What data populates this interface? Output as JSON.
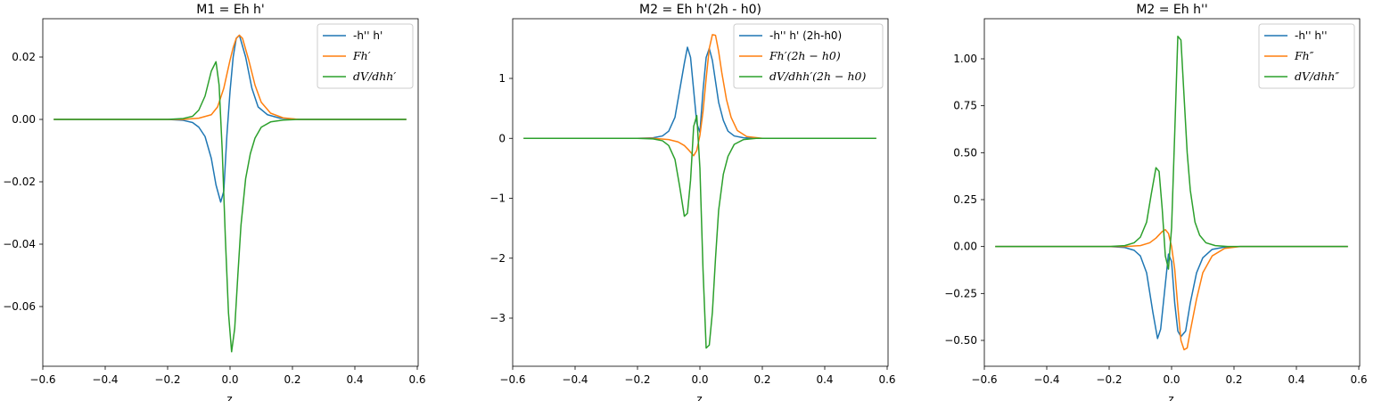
{
  "chart_data": [
    {
      "type": "line",
      "title": "M1 = Eh h'",
      "xlabel": "z",
      "ylabel": "",
      "xlim": [
        -0.6,
        0.6
      ],
      "ylim": [
        -0.078,
        0.032
      ],
      "xticks": [
        -0.6,
        -0.4,
        -0.2,
        0.0,
        0.2,
        0.4,
        0.6
      ],
      "xtick_labels": [
        "−0.6",
        "−0.4",
        "−0.2",
        "0.0",
        "0.2",
        "0.4",
        "0.6"
      ],
      "yticks": [
        0.02,
        0.0,
        -0.02,
        -0.04,
        -0.06
      ],
      "ytick_labels": [
        "0.02",
        "0.00",
        "−0.02",
        "−0.04",
        "−0.06"
      ],
      "legend_position": "top-right",
      "series": [
        {
          "name": "-h'' h'",
          "italic": false,
          "color": "#1f77b4",
          "x": [
            -0.565,
            -0.2,
            -0.15,
            -0.12,
            -0.1,
            -0.08,
            -0.06,
            -0.045,
            -0.03,
            -0.02,
            -0.01,
            0.0,
            0.01,
            0.02,
            0.03,
            0.05,
            0.07,
            0.09,
            0.12,
            0.16,
            0.22,
            0.565
          ],
          "y": [
            0,
            0,
            -0.0003,
            -0.001,
            -0.0025,
            -0.0055,
            -0.0125,
            -0.021,
            -0.0265,
            -0.023,
            -0.005,
            0.009,
            0.02,
            0.026,
            0.027,
            0.02,
            0.01,
            0.004,
            0.0015,
            0.0004,
            0,
            0
          ]
        },
        {
          "name": "Fh′",
          "italic": true,
          "color": "#ff7f0e",
          "x": [
            -0.565,
            -0.15,
            -0.1,
            -0.06,
            -0.04,
            -0.02,
            0.0,
            0.01,
            0.02,
            0.03,
            0.04,
            0.06,
            0.08,
            0.1,
            0.13,
            0.17,
            0.22,
            0.565
          ],
          "y": [
            0,
            0,
            0.0004,
            0.0015,
            0.004,
            0.01,
            0.019,
            0.023,
            0.026,
            0.027,
            0.026,
            0.019,
            0.011,
            0.0055,
            0.002,
            0.0005,
            0,
            0
          ]
        },
        {
          "name": "dV/dhh′",
          "italic": true,
          "color": "#2ca02c",
          "x": [
            -0.565,
            -0.2,
            -0.15,
            -0.12,
            -0.1,
            -0.08,
            -0.06,
            -0.045,
            -0.035,
            -0.025,
            -0.015,
            -0.005,
            0.005,
            0.015,
            0.025,
            0.035,
            0.05,
            0.065,
            0.08,
            0.1,
            0.13,
            0.17,
            0.22,
            0.565
          ],
          "y": [
            0,
            0,
            0.0003,
            0.001,
            0.003,
            0.0075,
            0.0155,
            0.0185,
            0.011,
            -0.01,
            -0.038,
            -0.062,
            -0.0745,
            -0.067,
            -0.05,
            -0.034,
            -0.019,
            -0.011,
            -0.006,
            -0.0025,
            -0.0008,
            -0.0002,
            0,
            0
          ]
        }
      ]
    },
    {
      "type": "line",
      "title": "M2 = Eh h'(2h - h0)",
      "xlabel": "z",
      "ylabel": "",
      "xlim": [
        -0.6,
        0.6
      ],
      "ylim": [
        -3.75,
        2.0
      ],
      "xticks": [
        -0.6,
        -0.4,
        -0.2,
        0.0,
        0.2,
        0.4,
        0.6
      ],
      "xtick_labels": [
        "−0.6",
        "−0.4",
        "−0.2",
        "0.0",
        "0.2",
        "0.4",
        "0.6"
      ],
      "yticks": [
        1,
        0,
        -1,
        -2,
        -3
      ],
      "ytick_labels": [
        "1",
        "0",
        "−1",
        "−2",
        "−3"
      ],
      "legend_position": "top-right",
      "series": [
        {
          "name": "-h'' h' (2h-h0)",
          "italic": false,
          "color": "#1f77b4",
          "x": [
            -0.565,
            -0.2,
            -0.15,
            -0.12,
            -0.1,
            -0.08,
            -0.065,
            -0.05,
            -0.04,
            -0.03,
            -0.02,
            -0.01,
            0.0,
            0.01,
            0.02,
            0.03,
            0.04,
            0.05,
            0.06,
            0.075,
            0.09,
            0.11,
            0.14,
            0.18,
            0.565
          ],
          "y": [
            0,
            0,
            0.01,
            0.04,
            0.12,
            0.35,
            0.8,
            1.25,
            1.52,
            1.35,
            0.8,
            0.25,
            0.1,
            0.8,
            1.35,
            1.5,
            1.3,
            0.95,
            0.6,
            0.3,
            0.12,
            0.04,
            0.01,
            0,
            0
          ]
        },
        {
          "name": "Fh′(2h − h0)",
          "italic": true,
          "color": "#ff7f0e",
          "x": [
            -0.565,
            -0.15,
            -0.1,
            -0.07,
            -0.05,
            -0.035,
            -0.02,
            -0.01,
            0.0,
            0.01,
            0.02,
            0.03,
            0.04,
            0.05,
            0.06,
            0.07,
            0.085,
            0.1,
            0.12,
            0.15,
            0.2,
            0.565
          ],
          "y": [
            0,
            0,
            -0.02,
            -0.06,
            -0.12,
            -0.2,
            -0.29,
            -0.2,
            0.05,
            0.45,
            1.0,
            1.5,
            1.73,
            1.72,
            1.45,
            1.1,
            0.65,
            0.35,
            0.13,
            0.03,
            0,
            0
          ]
        },
        {
          "name": "dV/dhh′(2h − h0)",
          "italic": true,
          "color": "#2ca02c",
          "x": [
            -0.565,
            -0.2,
            -0.15,
            -0.12,
            -0.1,
            -0.08,
            -0.065,
            -0.05,
            -0.04,
            -0.03,
            -0.02,
            -0.01,
            0.0,
            0.01,
            0.02,
            0.03,
            0.04,
            0.05,
            0.06,
            0.075,
            0.09,
            0.11,
            0.14,
            0.18,
            0.565
          ],
          "y": [
            0,
            0,
            -0.01,
            -0.04,
            -0.12,
            -0.35,
            -0.8,
            -1.3,
            -1.25,
            -0.7,
            0.2,
            0.38,
            -0.5,
            -2.2,
            -3.5,
            -3.45,
            -2.9,
            -2.0,
            -1.2,
            -0.6,
            -0.3,
            -0.1,
            -0.02,
            0,
            0
          ]
        }
      ]
    },
    {
      "type": "line",
      "title": "M2 = Eh h''",
      "xlabel": "z",
      "ylabel": "",
      "xlim": [
        -0.6,
        0.6
      ],
      "ylim": [
        -0.6,
        1.2
      ],
      "xticks": [
        -0.6,
        -0.4,
        -0.2,
        0.0,
        0.2,
        0.4,
        0.6
      ],
      "xtick_labels": [
        "−0.6",
        "−0.4",
        "−0.2",
        "0.0",
        "0.2",
        "0.4",
        "0.6"
      ],
      "yticks": [
        1.0,
        0.75,
        0.5,
        0.25,
        0.0,
        -0.25,
        -0.5
      ],
      "ytick_labels": [
        "1.00",
        "0.75",
        "0.50",
        "0.25",
        "0.00",
        "−0.25",
        "−0.50"
      ],
      "legend_position": "top-right",
      "series": [
        {
          "name": "-h'' h''",
          "italic": false,
          "color": "#1f77b4",
          "x": [
            -0.565,
            -0.2,
            -0.15,
            -0.12,
            -0.1,
            -0.08,
            -0.06,
            -0.045,
            -0.035,
            -0.02,
            -0.01,
            0.0,
            0.01,
            0.02,
            0.03,
            0.045,
            0.06,
            0.08,
            0.1,
            0.13,
            0.17,
            0.22,
            0.565
          ],
          "y": [
            0,
            0,
            -0.005,
            -0.02,
            -0.05,
            -0.14,
            -0.35,
            -0.49,
            -0.44,
            -0.2,
            -0.04,
            -0.08,
            -0.3,
            -0.45,
            -0.48,
            -0.45,
            -0.3,
            -0.14,
            -0.06,
            -0.015,
            -0.003,
            0,
            0
          ]
        },
        {
          "name": "Fh″",
          "italic": true,
          "color": "#ff7f0e",
          "x": [
            -0.565,
            -0.15,
            -0.1,
            -0.07,
            -0.05,
            -0.03,
            -0.02,
            -0.01,
            0.0,
            0.01,
            0.02,
            0.03,
            0.04,
            0.05,
            0.06,
            0.08,
            0.1,
            0.13,
            0.17,
            0.22,
            0.565
          ],
          "y": [
            0,
            0,
            0.005,
            0.02,
            0.045,
            0.08,
            0.09,
            0.07,
            0.0,
            -0.12,
            -0.32,
            -0.5,
            -0.55,
            -0.54,
            -0.45,
            -0.28,
            -0.14,
            -0.05,
            -0.01,
            0,
            0
          ]
        },
        {
          "name": "dV/dhh″",
          "italic": true,
          "color": "#2ca02c",
          "x": [
            -0.565,
            -0.2,
            -0.15,
            -0.12,
            -0.1,
            -0.08,
            -0.065,
            -0.05,
            -0.04,
            -0.03,
            -0.02,
            -0.01,
            0.0,
            0.01,
            0.02,
            0.03,
            0.04,
            0.05,
            0.06,
            0.075,
            0.09,
            0.11,
            0.14,
            0.18,
            0.565
          ],
          "y": [
            0,
            0,
            0.005,
            0.02,
            0.05,
            0.13,
            0.28,
            0.42,
            0.4,
            0.2,
            -0.05,
            -0.12,
            0.1,
            0.6,
            1.12,
            1.1,
            0.8,
            0.5,
            0.3,
            0.13,
            0.06,
            0.02,
            0.005,
            0,
            0
          ]
        }
      ]
    }
  ]
}
